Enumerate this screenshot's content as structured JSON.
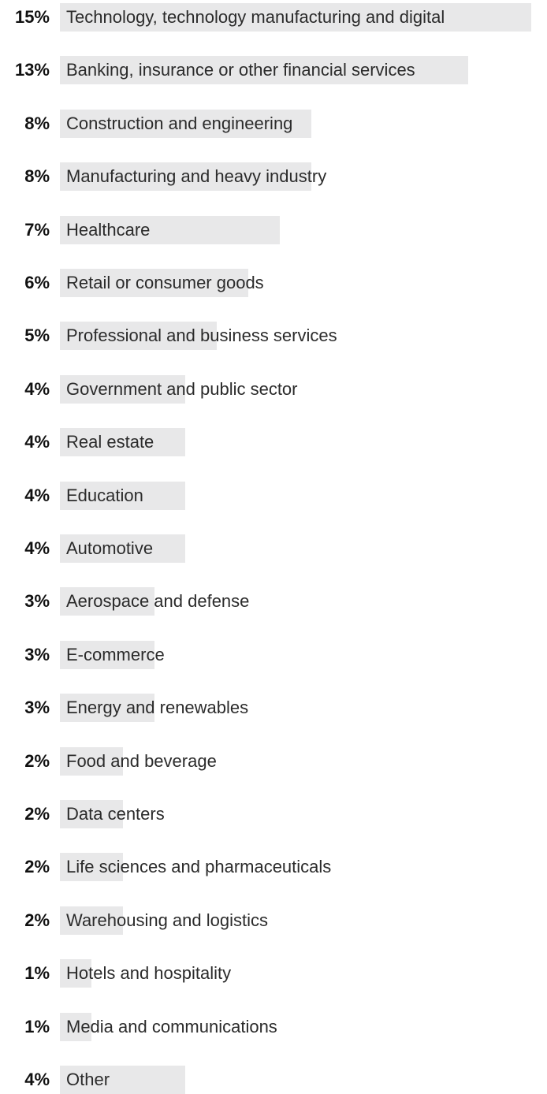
{
  "chart_data": {
    "type": "bar",
    "orientation": "horizontal",
    "value_suffix": "%",
    "bar_color": "#e8e8e9",
    "xlim": [
      0,
      15
    ],
    "categories": [
      "Technology, technology manufacturing and digital",
      "Banking, insurance or other financial services",
      "Construction and engineering",
      "Manufacturing and heavy industry",
      "Healthcare",
      "Retail or consumer goods",
      "Professional and business services",
      "Government and public sector",
      "Real estate",
      "Education",
      "Automotive",
      "Aerospace and defense",
      "E-commerce",
      "Energy and renewables",
      "Food and beverage",
      "Data centers",
      "Life sciences and pharmaceuticals",
      "Warehousing and logistics",
      "Hotels and hospitality",
      "Media and communications",
      "Other"
    ],
    "values": [
      15,
      13,
      8,
      8,
      7,
      6,
      5,
      4,
      4,
      4,
      4,
      3,
      3,
      3,
      2,
      2,
      2,
      2,
      1,
      1,
      4
    ],
    "value_labels": [
      "15%",
      "13%",
      "8%",
      "8%",
      "7%",
      "6%",
      "5%",
      "4%",
      "4%",
      "4%",
      "4%",
      "3%",
      "3%",
      "3%",
      "2%",
      "2%",
      "2%",
      "2%",
      "1%",
      "1%",
      "4%"
    ]
  }
}
